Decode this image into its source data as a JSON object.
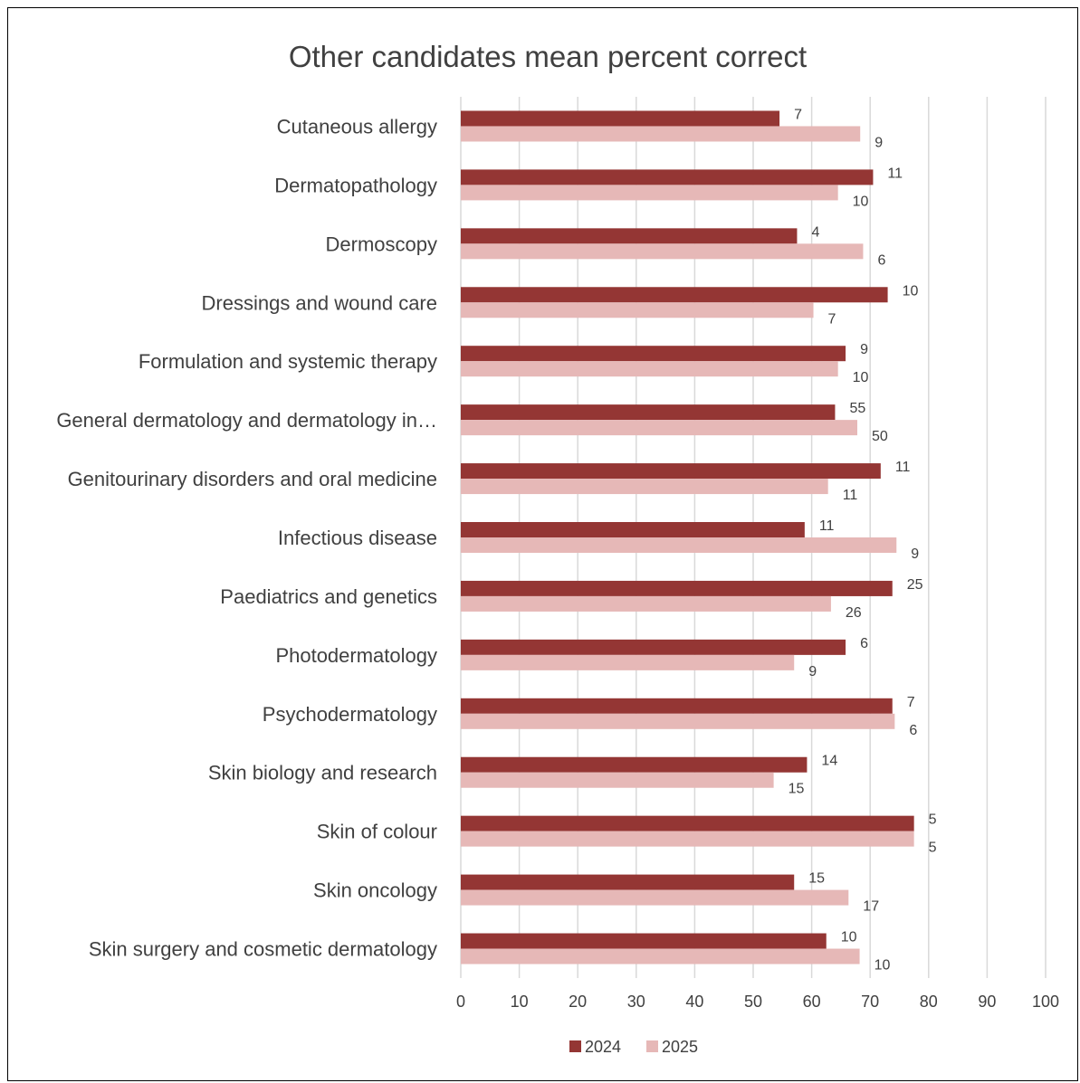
{
  "chart_data": {
    "type": "bar",
    "orientation": "horizontal",
    "title": "Other candidates mean percent correct",
    "xlabel": "",
    "ylabel": "",
    "xlim": [
      0,
      100
    ],
    "x_ticks": [
      "0",
      "10",
      "20",
      "30",
      "40",
      "50",
      "60",
      "70",
      "80",
      "90",
      "100"
    ],
    "grid": true,
    "legend_position": "bottom",
    "categories": [
      "Cutaneous allergy",
      "Dermatopathology",
      "Dermoscopy",
      "Dressings and wound care",
      "Formulation and systemic therapy",
      "General dermatology and dermatology in…",
      "Genitourinary disorders and oral medicine",
      "Infectious disease",
      "Paediatrics and genetics",
      "Photodermatology",
      "Psychodermatology",
      "Skin biology and research",
      "Skin of colour",
      "Skin oncology",
      "Skin surgery and cosmetic dermatology"
    ],
    "series": [
      {
        "name": "2024",
        "color": "#943634",
        "values": [
          54.5,
          70.5,
          57.5,
          73,
          65.8,
          64,
          71.8,
          58.8,
          73.8,
          65.8,
          73.8,
          59.2,
          77.5,
          57,
          62.5
        ],
        "labels": [
          "7",
          "11",
          "4",
          "10",
          "9",
          "55",
          "11",
          "11",
          "25",
          "6",
          "7",
          "14",
          "5",
          "15",
          "10"
        ]
      },
      {
        "name": "2025",
        "color": "#e6b8b7",
        "values": [
          68.3,
          64.5,
          68.8,
          60.3,
          64.5,
          67.8,
          62.8,
          74.5,
          63.3,
          57,
          74.2,
          53.5,
          77.5,
          66.3,
          68.2
        ],
        "labels": [
          "9",
          "10",
          "6",
          "7",
          "10",
          "50",
          "11",
          "9",
          "26",
          "9",
          "6",
          "15",
          "5",
          "17",
          "10"
        ]
      }
    ]
  }
}
